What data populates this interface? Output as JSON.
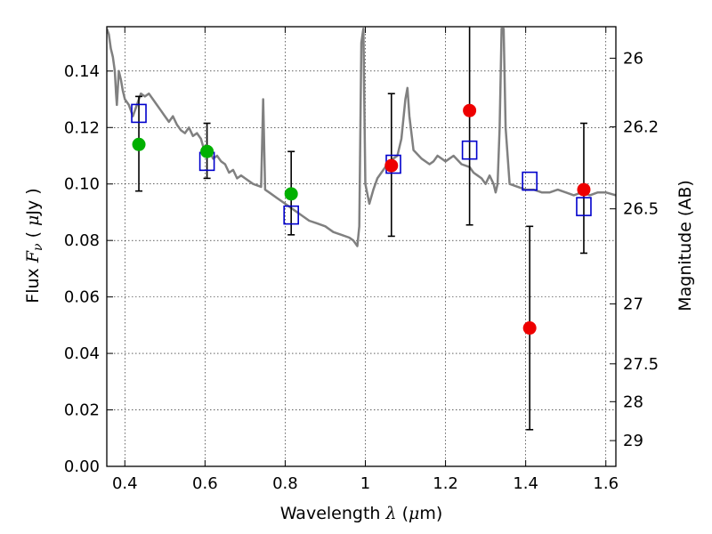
{
  "chart_data": {
    "type": "scatter",
    "xlabel": {
      "prefix": "Wavelength  ",
      "symbol": "λ",
      "unit_open": " (",
      "unit_mu": "μ",
      "unit_rest": "m)"
    },
    "ylabel": {
      "prefix": "Flux  ",
      "symbol": "F",
      "sub": "ν",
      "unit_open": "  ( ",
      "unit_mu": "μ",
      "unit_rest": "Jy )"
    },
    "y2label": "Magnitude (AB)",
    "xlim": [
      0.355,
      1.625
    ],
    "ylim": [
      0.0,
      0.1557
    ],
    "grid": true,
    "x_ticks": [
      {
        "value": 0.4,
        "label": "0.4"
      },
      {
        "value": 0.6,
        "label": "0.6"
      },
      {
        "value": 0.8,
        "label": "0.8"
      },
      {
        "value": 1.0,
        "label": "1"
      },
      {
        "value": 1.2,
        "label": "1.2"
      },
      {
        "value": 1.4,
        "label": "1.4"
      },
      {
        "value": 1.6,
        "label": "1.6"
      }
    ],
    "y_ticks": [
      {
        "value": 0.0,
        "label": "0.00"
      },
      {
        "value": 0.02,
        "label": "0.02"
      },
      {
        "value": 0.04,
        "label": "0.04"
      },
      {
        "value": 0.06,
        "label": "0.06"
      },
      {
        "value": 0.08,
        "label": "0.08"
      },
      {
        "value": 0.1,
        "label": "0.10"
      },
      {
        "value": 0.12,
        "label": "0.12"
      },
      {
        "value": 0.14,
        "label": "0.14"
      }
    ],
    "mag_ticks": [
      {
        "value": 26,
        "label": "26"
      },
      {
        "value": 26.2,
        "label": "26.2"
      },
      {
        "value": 26.5,
        "label": "26.5"
      },
      {
        "value": 27,
        "label": "27"
      },
      {
        "value": 27.5,
        "label": "27.5"
      },
      {
        "value": 28,
        "label": "28"
      },
      {
        "value": 29,
        "label": "29"
      }
    ],
    "colors": {
      "model": "#808080",
      "green": "#00b000",
      "red": "#ee0000",
      "square": "#0000cc",
      "errorbar": "#000000",
      "grid": "#000000"
    },
    "series": [
      {
        "name": "model spectrum",
        "type": "line",
        "points": [
          [
            0.355,
            0.155
          ],
          [
            0.36,
            0.153
          ],
          [
            0.365,
            0.148
          ],
          [
            0.37,
            0.145
          ],
          [
            0.375,
            0.14
          ],
          [
            0.378,
            0.132
          ],
          [
            0.38,
            0.128
          ],
          [
            0.385,
            0.14
          ],
          [
            0.39,
            0.137
          ],
          [
            0.395,
            0.133
          ],
          [
            0.4,
            0.13
          ],
          [
            0.41,
            0.128
          ],
          [
            0.42,
            0.124
          ],
          [
            0.43,
            0.128
          ],
          [
            0.44,
            0.132
          ],
          [
            0.45,
            0.131
          ],
          [
            0.46,
            0.132
          ],
          [
            0.47,
            0.13
          ],
          [
            0.48,
            0.128
          ],
          [
            0.49,
            0.126
          ],
          [
            0.5,
            0.124
          ],
          [
            0.51,
            0.122
          ],
          [
            0.52,
            0.124
          ],
          [
            0.53,
            0.121
          ],
          [
            0.54,
            0.119
          ],
          [
            0.55,
            0.118
          ],
          [
            0.56,
            0.12
          ],
          [
            0.57,
            0.117
          ],
          [
            0.58,
            0.118
          ],
          [
            0.59,
            0.116
          ],
          [
            0.6,
            0.111
          ],
          [
            0.61,
            0.112
          ],
          [
            0.62,
            0.109
          ],
          [
            0.63,
            0.11
          ],
          [
            0.64,
            0.108
          ],
          [
            0.65,
            0.107
          ],
          [
            0.66,
            0.104
          ],
          [
            0.67,
            0.105
          ],
          [
            0.68,
            0.102
          ],
          [
            0.69,
            0.103
          ],
          [
            0.7,
            0.102
          ],
          [
            0.72,
            0.1
          ],
          [
            0.74,
            0.099
          ],
          [
            0.745,
            0.13
          ],
          [
            0.75,
            0.098
          ],
          [
            0.76,
            0.097
          ],
          [
            0.78,
            0.095
          ],
          [
            0.8,
            0.093
          ],
          [
            0.82,
            0.091
          ],
          [
            0.84,
            0.089
          ],
          [
            0.86,
            0.087
          ],
          [
            0.88,
            0.086
          ],
          [
            0.9,
            0.085
          ],
          [
            0.92,
            0.083
          ],
          [
            0.94,
            0.082
          ],
          [
            0.96,
            0.081
          ],
          [
            0.97,
            0.08
          ],
          [
            0.98,
            0.078
          ],
          [
            0.985,
            0.085
          ],
          [
            0.99,
            0.15
          ],
          [
            0.995,
            0.155
          ],
          [
            1.0,
            0.1
          ],
          [
            1.01,
            0.093
          ],
          [
            1.02,
            0.098
          ],
          [
            1.03,
            0.102
          ],
          [
            1.04,
            0.104
          ],
          [
            1.05,
            0.106
          ],
          [
            1.06,
            0.108
          ],
          [
            1.08,
            0.11
          ],
          [
            1.09,
            0.116
          ],
          [
            1.1,
            0.13
          ],
          [
            1.105,
            0.134
          ],
          [
            1.11,
            0.124
          ],
          [
            1.12,
            0.112
          ],
          [
            1.14,
            0.109
          ],
          [
            1.16,
            0.107
          ],
          [
            1.17,
            0.108
          ],
          [
            1.18,
            0.11
          ],
          [
            1.2,
            0.108
          ],
          [
            1.22,
            0.11
          ],
          [
            1.24,
            0.107
          ],
          [
            1.26,
            0.106
          ],
          [
            1.27,
            0.104
          ],
          [
            1.28,
            0.103
          ],
          [
            1.29,
            0.102
          ],
          [
            1.3,
            0.1
          ],
          [
            1.31,
            0.103
          ],
          [
            1.32,
            0.1
          ],
          [
            1.325,
            0.097
          ],
          [
            1.33,
            0.1
          ],
          [
            1.335,
            0.12
          ],
          [
            1.34,
            0.155
          ],
          [
            1.345,
            0.155
          ],
          [
            1.35,
            0.12
          ],
          [
            1.36,
            0.1
          ],
          [
            1.38,
            0.099
          ],
          [
            1.4,
            0.098
          ],
          [
            1.42,
            0.098
          ],
          [
            1.44,
            0.097
          ],
          [
            1.46,
            0.097
          ],
          [
            1.48,
            0.098
          ],
          [
            1.5,
            0.097
          ],
          [
            1.52,
            0.096
          ],
          [
            1.54,
            0.097
          ],
          [
            1.56,
            0.096
          ],
          [
            1.58,
            0.097
          ],
          [
            1.6,
            0.097
          ],
          [
            1.625,
            0.096
          ]
        ]
      },
      {
        "name": "model photometry",
        "type": "scatter",
        "marker": "open-square",
        "points": [
          [
            0.435,
            0.125
          ],
          [
            0.605,
            0.108
          ],
          [
            0.815,
            0.089
          ],
          [
            1.07,
            0.107
          ],
          [
            1.26,
            0.112
          ],
          [
            1.41,
            0.101
          ],
          [
            1.545,
            0.092
          ]
        ]
      },
      {
        "name": "observed detections (green)",
        "type": "scatter",
        "marker": "filled-circle",
        "color": "green",
        "points": [
          {
            "x": 0.435,
            "y": 0.114,
            "lo": 0.0975,
            "hi": 0.131
          },
          {
            "x": 0.605,
            "y": 0.1115,
            "lo": 0.102,
            "hi": 0.1215
          },
          {
            "x": 0.815,
            "y": 0.0965,
            "lo": 0.082,
            "hi": 0.1115
          }
        ]
      },
      {
        "name": "observed photometry (red)",
        "type": "scatter",
        "marker": "filled-circle",
        "color": "red",
        "points": [
          {
            "x": 1.065,
            "y": 0.1065,
            "lo": 0.0815,
            "hi": 0.132
          },
          {
            "x": 1.26,
            "y": 0.126,
            "lo": 0.0855,
            "hi": 0.1557
          },
          {
            "x": 1.41,
            "y": 0.049,
            "lo": 0.013,
            "hi": 0.085
          },
          {
            "x": 1.545,
            "y": 0.098,
            "lo": 0.0755,
            "hi": 0.1215
          }
        ]
      }
    ]
  }
}
